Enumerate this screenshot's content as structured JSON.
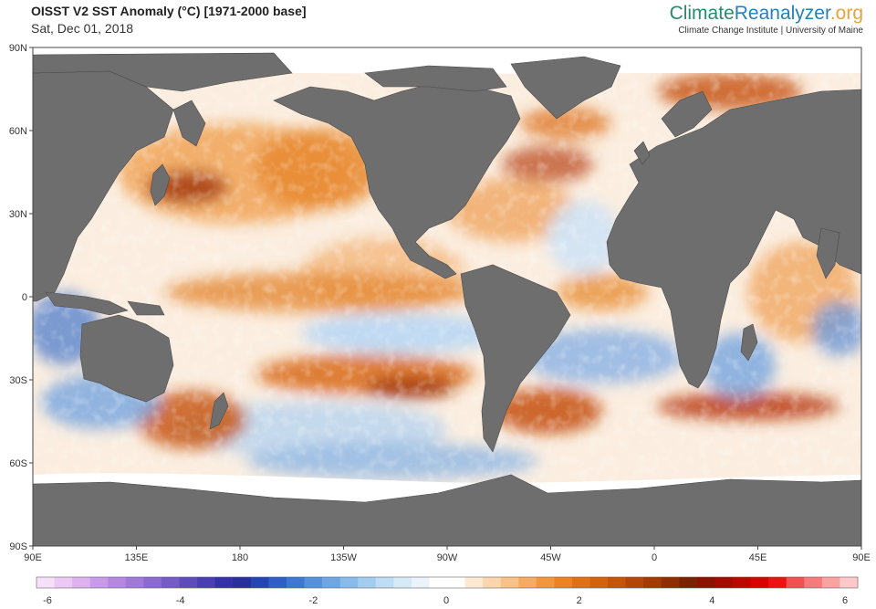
{
  "header": {
    "title": "OISST V2 SST Anomaly (°C) [1971-2000 base]",
    "date": "Sat, Dec 01, 2018"
  },
  "brand": {
    "part1": "Climate",
    "part2": "Reanalyzer",
    "part3": ".org",
    "subtitle": "Climate Change Institute | University of Maine"
  },
  "map": {
    "lat_labels": [
      "90N",
      "60N",
      "30N",
      "0",
      "30S",
      "60S",
      "90S"
    ],
    "lon_labels": [
      "90E",
      "135E",
      "180",
      "135W",
      "90W",
      "45W",
      "0",
      "45E",
      "90E"
    ],
    "land_color": "#6e6e6e",
    "ice_color": "#ffffff"
  },
  "colorbar": {
    "ticks": [
      "-6",
      "-4",
      "-2",
      "0",
      "2",
      "4",
      "6"
    ],
    "colors": [
      "#f6e0f8",
      "#ecc9f4",
      "#ddb0ee",
      "#c79be8",
      "#b488e0",
      "#a07ad8",
      "#8a6ad0",
      "#755bc6",
      "#5f4cbc",
      "#4a3fb2",
      "#3432a8",
      "#28309c",
      "#2446b4",
      "#2f5ec6",
      "#3f76d2",
      "#5590dc",
      "#6ea6e4",
      "#88bbea",
      "#a3cdf0",
      "#bedcf4",
      "#d6e9f7",
      "#eaf3fa",
      "#ffffff",
      "#ffffff",
      "#fde9d2",
      "#fbd6ad",
      "#f8c187",
      "#f5ab62",
      "#f2963e",
      "#ec8220",
      "#e07014",
      "#d3620c",
      "#c45406",
      "#b44603",
      "#a23a02",
      "#8e2e01",
      "#7a2200",
      "#8c1200",
      "#a40a00",
      "#bc0600",
      "#d40400",
      "#ec1212",
      "#f25050",
      "#f67a7a",
      "#f9a2a2",
      "#fcc8c8"
    ]
  }
}
